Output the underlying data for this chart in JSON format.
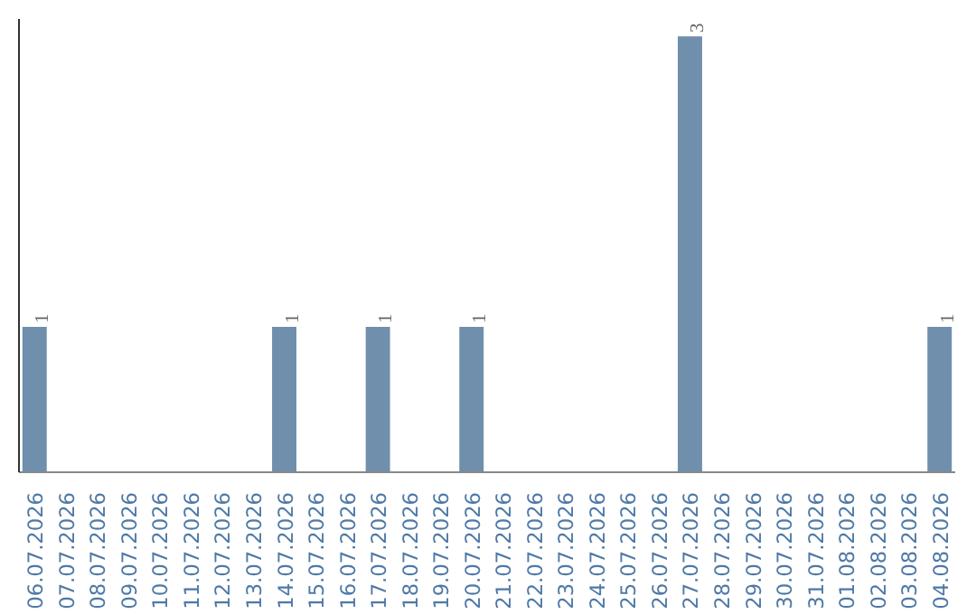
{
  "chart_data": {
    "type": "bar",
    "categories": [
      "06.07.2026",
      "07.07.2026",
      "08.07.2026",
      "09.07.2026",
      "10.07.2026",
      "11.07.2026",
      "12.07.2026",
      "13.07.2026",
      "14.07.2026",
      "15.07.2026",
      "16.07.2026",
      "17.07.2026",
      "18.07.2026",
      "19.07.2026",
      "20.07.2026",
      "21.07.2026",
      "22.07.2026",
      "23.07.2026",
      "24.07.2026",
      "25.07.2026",
      "26.07.2026",
      "27.07.2026",
      "28.07.2026",
      "29.07.2026",
      "30.07.2026",
      "31.07.2026",
      "01.08.2026",
      "02.08.2026",
      "03.08.2026",
      "04.08.2026"
    ],
    "values": [
      1,
      0,
      0,
      0,
      0,
      0,
      0,
      0,
      1,
      0,
      0,
      1,
      0,
      0,
      1,
      0,
      0,
      0,
      0,
      0,
      0,
      3,
      0,
      0,
      0,
      0,
      0,
      0,
      0,
      1
    ],
    "value_labels": [
      "1",
      null,
      null,
      null,
      null,
      null,
      null,
      null,
      "1",
      null,
      null,
      "1",
      null,
      null,
      "1",
      null,
      null,
      null,
      null,
      null,
      null,
      "3",
      null,
      null,
      null,
      null,
      null,
      null,
      null,
      "1"
    ],
    "color": "#6f8fad",
    "tick_labels": "x",
    "grid": false
  }
}
